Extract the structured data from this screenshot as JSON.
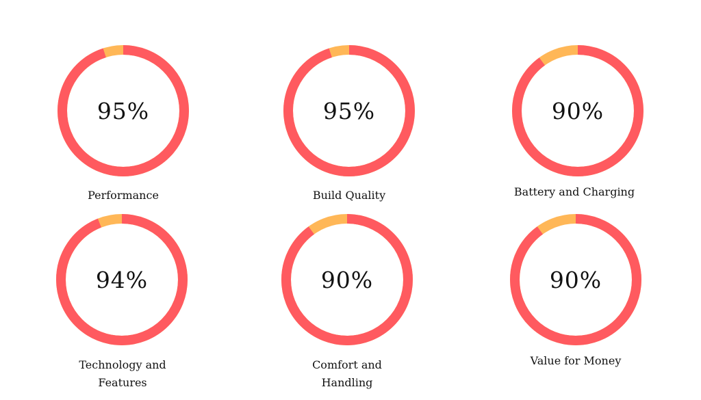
{
  "colors": {
    "primary": "#FF5A5F",
    "secondary": "#FFB757",
    "text": "#111111",
    "background": "#FFFFFF"
  },
  "chart_data": [
    {
      "type": "pie",
      "label": "Performance",
      "value": 95,
      "value_text": "95%"
    },
    {
      "type": "pie",
      "label": "Build Quality",
      "value": 95,
      "value_text": "95%"
    },
    {
      "type": "pie",
      "label": "Battery and Charging",
      "value": 90,
      "value_text": "90%"
    },
    {
      "type": "pie",
      "label": "Technology and Features",
      "value": 94,
      "value_text": "94%"
    },
    {
      "type": "pie",
      "label": "Comfort and Handling",
      "value": 90,
      "value_text": "90%"
    },
    {
      "type": "pie",
      "label": "Value for Money",
      "value": 90,
      "value_text": "90%"
    }
  ]
}
